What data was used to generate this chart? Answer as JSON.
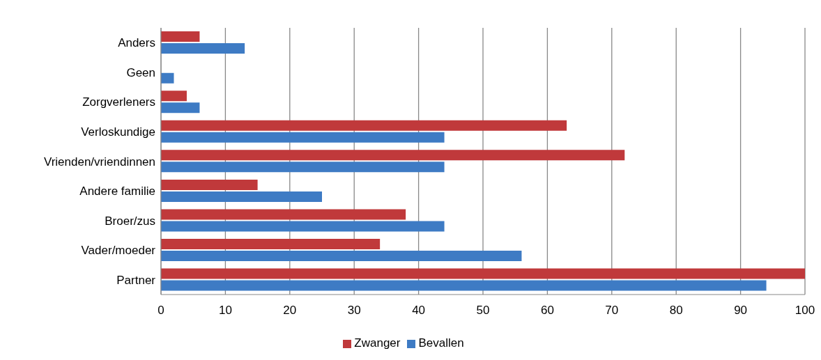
{
  "chart_data": {
    "type": "bar",
    "orientation": "horizontal",
    "categories": [
      "Anders",
      "Geen",
      "Zorgverleners",
      "Verloskundige",
      "Vrienden/vriendinnen",
      "Andere familie",
      "Broer/zus",
      "Vader/moeder",
      "Partner"
    ],
    "series": [
      {
        "name": "Zwanger",
        "color": "#c0393b",
        "values": [
          6,
          0,
          4,
          63,
          72,
          15,
          38,
          34,
          100
        ]
      },
      {
        "name": "Bevallen",
        "color": "#3e7bc4",
        "values": [
          13,
          2,
          6,
          44,
          44,
          25,
          44,
          56,
          94
        ]
      }
    ],
    "xlim": [
      0,
      100
    ],
    "xticks": [
      0,
      10,
      20,
      30,
      40,
      50,
      60,
      70,
      80,
      90,
      100
    ],
    "grid": "x",
    "legend": "bottom"
  }
}
